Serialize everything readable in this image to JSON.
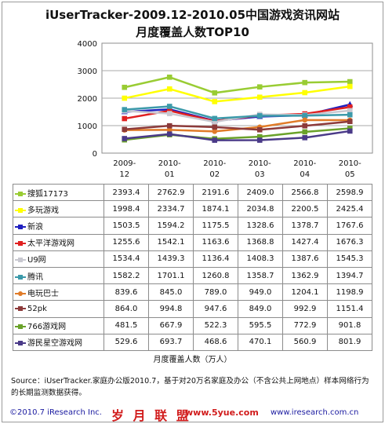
{
  "chart_data": {
    "type": "line",
    "title": "iUserTracker-2009.12-2010.05中国游戏资讯网站",
    "subtitle": "月度覆盖人数TOP10",
    "categories": [
      "2009-12",
      "2010-01",
      "2010-02",
      "2010-03",
      "2010-04",
      "2010-05"
    ],
    "yticks": [
      "4000",
      "3000",
      "2000",
      "1000",
      "0"
    ],
    "ylim": [
      0,
      4000
    ],
    "grid": true,
    "legend": "table-below",
    "unit_label": "月度覆盖人数（万人）",
    "series": [
      {
        "name": "搜狐17173",
        "color": "#99cc33",
        "marker": "square",
        "values": [
          2393.4,
          2762.9,
          2191.6,
          2409.0,
          2566.8,
          2598.9
        ],
        "labels": [
          "2393.4",
          "2762.9",
          "2191.6",
          "2409.0",
          "2566.8",
          "2598.9"
        ]
      },
      {
        "name": "多玩游戏",
        "color": "#ffff00",
        "marker": "square",
        "values": [
          1998.4,
          2334.7,
          1874.1,
          2034.8,
          2200.5,
          2425.4
        ],
        "labels": [
          "1998.4",
          "2334.7",
          "1874.1",
          "2034.8",
          "2200.5",
          "2425.4"
        ]
      },
      {
        "name": "新浪",
        "color": "#1f1fbf",
        "marker": "triangle",
        "values": [
          1503.5,
          1594.2,
          1175.5,
          1328.6,
          1378.7,
          1767.6
        ],
        "labels": [
          "1503.5",
          "1594.2",
          "1175.5",
          "1328.6",
          "1378.7",
          "1767.6"
        ]
      },
      {
        "name": "太平洋游戏网",
        "color": "#e02020",
        "marker": "square",
        "values": [
          1255.6,
          1542.1,
          1163.6,
          1368.8,
          1427.4,
          1676.3
        ],
        "labels": [
          "1255.6",
          "1542.1",
          "1163.6",
          "1368.8",
          "1427.4",
          "1676.3"
        ]
      },
      {
        "name": "U9网",
        "color": "#c8c8d0",
        "marker": "square",
        "values": [
          1534.4,
          1439.3,
          1136.4,
          1408.3,
          1387.6,
          1545.3
        ],
        "labels": [
          "1534.4",
          "1439.3",
          "1136.4",
          "1408.3",
          "1387.6",
          "1545.3"
        ]
      },
      {
        "name": "腾讯",
        "color": "#3c9aaa",
        "marker": "square",
        "values": [
          1582.2,
          1701.1,
          1260.8,
          1358.7,
          1362.9,
          1394.7
        ],
        "labels": [
          "1582.2",
          "1701.1",
          "1260.8",
          "1358.7",
          "1362.9",
          "1394.7"
        ]
      },
      {
        "name": "电玩巴士",
        "color": "#e07b28",
        "marker": "circle",
        "values": [
          839.6,
          845.0,
          789.0,
          949.0,
          1204.1,
          1198.9
        ],
        "labels": [
          "839.6",
          "845.0",
          "789.0",
          "949.0",
          "1204.1",
          "1198.9"
        ]
      },
      {
        "name": "52pk",
        "color": "#8c3a3a",
        "marker": "square",
        "values": [
          864.0,
          994.8,
          947.6,
          849.0,
          992.9,
          1151.4
        ],
        "labels": [
          "864.0",
          "994.8",
          "947.6",
          "849.0",
          "992.9",
          "1151.4"
        ]
      },
      {
        "name": "766游戏网",
        "color": "#6aa22a",
        "marker": "square",
        "values": [
          481.5,
          667.9,
          522.3,
          595.5,
          772.9,
          901.8
        ],
        "labels": [
          "481.5",
          "667.9",
          "522.3",
          "595.5",
          "772.9",
          "901.8"
        ]
      },
      {
        "name": "游民星空游戏网",
        "color": "#4a3a88",
        "marker": "square",
        "values": [
          529.6,
          693.7,
          468.6,
          470.1,
          560.9,
          801.9
        ],
        "labels": [
          "529.6",
          "693.7",
          "468.6",
          "470.1",
          "560.9",
          "801.9"
        ]
      }
    ]
  },
  "source_note": "Source：iUserTracker.家庭办公版2010.7，基于对20万名家庭及办公（不含公共上网地点）样本网络行为的长期监测数据获得。",
  "footer": {
    "copyright": "©2010.7 iResearch Inc.",
    "brand": "岁 月 联 盟",
    "site": "www.5yue.com",
    "site2": "www.iresearch.com.cn"
  }
}
